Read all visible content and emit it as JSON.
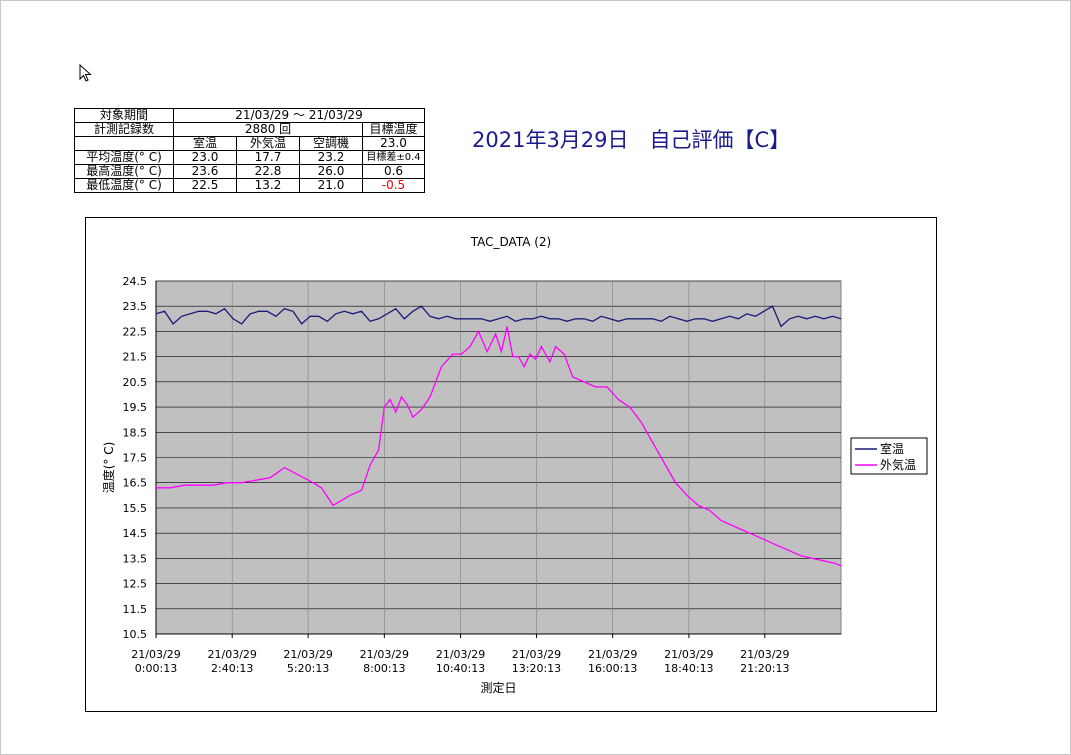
{
  "summary_table": {
    "rows": [
      [
        "対象期間",
        "21/03/29 〜 21/03/29",
        "",
        "",
        ""
      ],
      [
        "計測記録数",
        "2880 回",
        "",
        "",
        "目標温度"
      ],
      [
        "",
        "室温",
        "外気温",
        "空調機",
        "23.0"
      ],
      [
        "平均温度(° C)",
        "23.0",
        "17.7",
        "23.2",
        "目標差±0.4"
      ],
      [
        "最高温度(° C)",
        "23.6",
        "22.8",
        "26.0",
        "0.6"
      ],
      [
        "最低温度(° C)",
        "22.5",
        "13.2",
        "21.0",
        "-0.5"
      ]
    ],
    "negative_color": "#ff0000"
  },
  "page_title": "2021年3月29日　自己評価【C】",
  "colors": {
    "title": "#1a1a8c",
    "plot_bg": "#c0c0c0",
    "grid": "#808080"
  },
  "chart_data": {
    "type": "line",
    "title": "TAC_DATA (2)",
    "xlabel": "測定日",
    "ylabel": "温度(° C)",
    "ylim": [
      10.5,
      24.5
    ],
    "y_ticks": [
      "24.5",
      "23.5",
      "22.5",
      "21.5",
      "20.5",
      "19.5",
      "18.5",
      "17.5",
      "16.5",
      "15.5",
      "14.5",
      "13.5",
      "12.5",
      "11.5",
      "10.5"
    ],
    "x_ticks": [
      {
        "date": "21/03/29",
        "time": "0:00:13"
      },
      {
        "date": "21/03/29",
        "time": "2:40:13"
      },
      {
        "date": "21/03/29",
        "time": "5:20:13"
      },
      {
        "date": "21/03/29",
        "time": "8:00:13"
      },
      {
        "date": "21/03/29",
        "time": "10:40:13"
      },
      {
        "date": "21/03/29",
        "time": "13:20:13"
      },
      {
        "date": "21/03/29",
        "time": "16:00:13"
      },
      {
        "date": "21/03/29",
        "time": "18:40:13"
      },
      {
        "date": "21/03/29",
        "time": "21:20:13"
      }
    ],
    "x_hours": [
      0.0,
      2.67,
      5.33,
      8.0,
      10.67,
      13.33,
      16.0,
      18.67,
      21.33
    ],
    "xlim_hours": [
      0,
      24
    ],
    "grid": true,
    "legend_position": "right",
    "series": [
      {
        "name": "室温",
        "color": "#1a1a7a",
        "x_hours": [
          0,
          0.3,
          0.6,
          0.9,
          1.2,
          1.5,
          1.8,
          2.1,
          2.4,
          2.7,
          3.0,
          3.3,
          3.6,
          3.9,
          4.2,
          4.5,
          4.8,
          5.1,
          5.4,
          5.7,
          6.0,
          6.3,
          6.6,
          6.9,
          7.2,
          7.5,
          7.8,
          8.1,
          8.4,
          8.7,
          9.0,
          9.3,
          9.6,
          9.9,
          10.2,
          10.5,
          10.8,
          11.1,
          11.4,
          11.7,
          12.0,
          12.3,
          12.6,
          12.9,
          13.2,
          13.5,
          13.8,
          14.1,
          14.4,
          14.7,
          15.0,
          15.3,
          15.6,
          15.9,
          16.2,
          16.5,
          16.8,
          17.1,
          17.4,
          17.7,
          18.0,
          18.3,
          18.6,
          18.9,
          19.2,
          19.5,
          19.8,
          20.1,
          20.4,
          20.7,
          21.0,
          21.3,
          21.6,
          21.9,
          22.2,
          22.5,
          22.8,
          23.1,
          23.4,
          23.7,
          24.0
        ],
        "y": [
          23.2,
          23.3,
          22.8,
          23.1,
          23.2,
          23.3,
          23.3,
          23.2,
          23.4,
          23.0,
          22.8,
          23.2,
          23.3,
          23.3,
          23.1,
          23.4,
          23.3,
          22.8,
          23.1,
          23.1,
          22.9,
          23.2,
          23.3,
          23.2,
          23.3,
          22.9,
          23.0,
          23.2,
          23.4,
          23.0,
          23.3,
          23.5,
          23.1,
          23.0,
          23.1,
          23.0,
          23.0,
          23.0,
          23.0,
          22.9,
          23.0,
          23.1,
          22.9,
          23.0,
          23.0,
          23.1,
          23.0,
          23.0,
          22.9,
          23.0,
          23.0,
          22.9,
          23.1,
          23.0,
          22.9,
          23.0,
          23.0,
          23.0,
          23.0,
          22.9,
          23.1,
          23.0,
          22.9,
          23.0,
          23.0,
          22.9,
          23.0,
          23.1,
          23.0,
          23.2,
          23.1,
          23.3,
          23.5,
          22.7,
          23.0,
          23.1,
          23.0,
          23.1,
          23.0,
          23.1,
          23.0
        ]
      },
      {
        "name": "外気温",
        "color": "#ff00ff",
        "x_hours": [
          0,
          0.5,
          1.0,
          1.5,
          2.0,
          2.5,
          3.0,
          3.5,
          4.0,
          4.5,
          5.0,
          5.5,
          5.8,
          6.2,
          6.5,
          6.8,
          7.2,
          7.5,
          7.8,
          8.0,
          8.2,
          8.4,
          8.6,
          8.8,
          9.0,
          9.3,
          9.6,
          10.0,
          10.4,
          10.7,
          11.0,
          11.3,
          11.6,
          11.9,
          12.1,
          12.3,
          12.5,
          12.7,
          12.9,
          13.1,
          13.3,
          13.5,
          13.8,
          14.0,
          14.3,
          14.6,
          15.0,
          15.4,
          15.8,
          16.2,
          16.6,
          17.0,
          17.4,
          17.8,
          18.2,
          18.6,
          19.0,
          19.4,
          19.8,
          20.2,
          20.6,
          21.0,
          21.4,
          21.8,
          22.2,
          22.6,
          23.0,
          23.4,
          23.8,
          24.0
        ],
        "y": [
          16.3,
          16.3,
          16.4,
          16.4,
          16.4,
          16.5,
          16.5,
          16.6,
          16.7,
          17.1,
          16.8,
          16.5,
          16.3,
          15.6,
          15.8,
          16.0,
          16.2,
          17.2,
          17.8,
          19.5,
          19.8,
          19.3,
          19.9,
          19.6,
          19.1,
          19.4,
          19.9,
          21.1,
          21.6,
          21.6,
          21.9,
          22.5,
          21.7,
          22.4,
          21.7,
          22.7,
          21.5,
          21.5,
          21.1,
          21.6,
          21.4,
          21.9,
          21.3,
          21.9,
          21.6,
          20.7,
          20.5,
          20.3,
          20.3,
          19.8,
          19.5,
          18.9,
          18.1,
          17.3,
          16.5,
          16.0,
          15.6,
          15.4,
          15.0,
          14.8,
          14.6,
          14.4,
          14.2,
          14.0,
          13.8,
          13.6,
          13.5,
          13.4,
          13.3,
          13.2
        ]
      }
    ]
  }
}
